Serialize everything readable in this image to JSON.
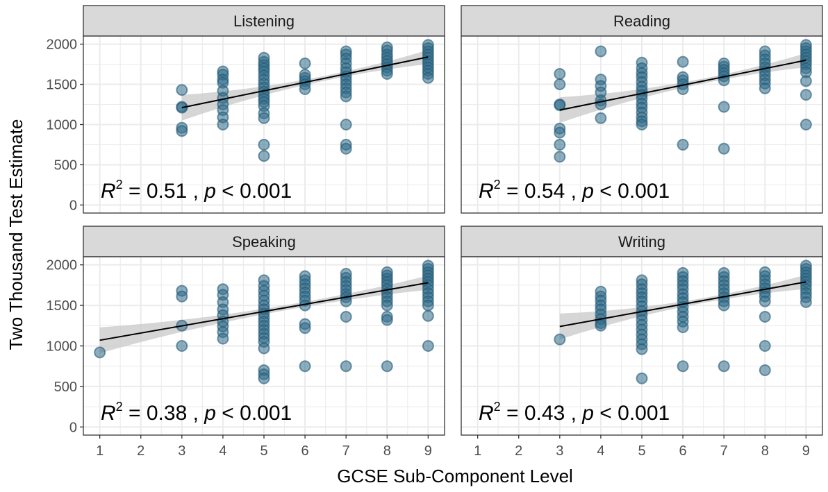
{
  "chart_data": {
    "type": "scatter",
    "xlabel": "GCSE Sub-Component Level",
    "ylabel": "Two Thousand Test Estimate",
    "xlim": [
      0.6,
      9.4
    ],
    "ylim": [
      -100,
      2100
    ],
    "x_ticks": [
      1,
      2,
      3,
      4,
      5,
      6,
      7,
      8,
      9
    ],
    "y_ticks": [
      0,
      500,
      1000,
      1500,
      2000
    ],
    "grid": true,
    "colors": {
      "point": "#2f6c8a",
      "point_edge": "#245a74",
      "fit_line": "#000000",
      "ci_band": "#c8c8c8",
      "strip_bg": "#d9d9d9",
      "panel_border": "#333333",
      "grid": "#ebebeb"
    },
    "panels": [
      {
        "title": "Listening",
        "stat": {
          "r2": "0.51",
          "p": "0.001",
          "r_label": "R",
          "sup": "2",
          "p_label": "p",
          "eq": " = ",
          "lt": " < ",
          "sep": " , "
        },
        "fit": {
          "x": [
            3,
            9
          ],
          "y": [
            1210,
            1840
          ]
        },
        "points": [
          [
            3,
            1430
          ],
          [
            3,
            1220
          ],
          [
            3,
            1210
          ],
          [
            3,
            960
          ],
          [
            3,
            920
          ],
          [
            4,
            1660
          ],
          [
            4,
            1620
          ],
          [
            4,
            1560
          ],
          [
            4,
            1520
          ],
          [
            4,
            1420
          ],
          [
            4,
            1330
          ],
          [
            4,
            1250
          ],
          [
            4,
            1180
          ],
          [
            4,
            1090
          ],
          [
            4,
            1000
          ],
          [
            5,
            1830
          ],
          [
            5,
            1780
          ],
          [
            5,
            1740
          ],
          [
            5,
            1700
          ],
          [
            5,
            1660
          ],
          [
            5,
            1610
          ],
          [
            5,
            1560
          ],
          [
            5,
            1510
          ],
          [
            5,
            1460
          ],
          [
            5,
            1410
          ],
          [
            5,
            1360
          ],
          [
            5,
            1320
          ],
          [
            5,
            1280
          ],
          [
            5,
            1230
          ],
          [
            5,
            1140
          ],
          [
            5,
            1080
          ],
          [
            5,
            750
          ],
          [
            5,
            610
          ],
          [
            6,
            1760
          ],
          [
            6,
            1620
          ],
          [
            6,
            1580
          ],
          [
            6,
            1540
          ],
          [
            6,
            1500
          ],
          [
            6,
            1440
          ],
          [
            7,
            1910
          ],
          [
            7,
            1870
          ],
          [
            7,
            1820
          ],
          [
            7,
            1760
          ],
          [
            7,
            1700
          ],
          [
            7,
            1650
          ],
          [
            7,
            1600
          ],
          [
            7,
            1550
          ],
          [
            7,
            1500
          ],
          [
            7,
            1450
          ],
          [
            7,
            1400
          ],
          [
            7,
            1350
          ],
          [
            7,
            1000
          ],
          [
            7,
            750
          ],
          [
            7,
            700
          ],
          [
            8,
            1960
          ],
          [
            8,
            1920
          ],
          [
            8,
            1870
          ],
          [
            8,
            1830
          ],
          [
            8,
            1790
          ],
          [
            8,
            1750
          ],
          [
            8,
            1710
          ],
          [
            8,
            1670
          ],
          [
            8,
            1630
          ],
          [
            9,
            1990
          ],
          [
            9,
            1950
          ],
          [
            9,
            1910
          ],
          [
            9,
            1870
          ],
          [
            9,
            1830
          ],
          [
            9,
            1790
          ],
          [
            9,
            1750
          ],
          [
            9,
            1710
          ],
          [
            9,
            1670
          ],
          [
            9,
            1630
          ],
          [
            9,
            1580
          ]
        ]
      },
      {
        "title": "Reading",
        "stat": {
          "r2": "0.54",
          "p": "0.001",
          "r_label": "R",
          "sup": "2",
          "p_label": "p",
          "eq": " = ",
          "lt": " < ",
          "sep": " , "
        },
        "fit": {
          "x": [
            3,
            9
          ],
          "y": [
            1180,
            1800
          ]
        },
        "points": [
          [
            3,
            1630
          ],
          [
            3,
            1500
          ],
          [
            3,
            1250
          ],
          [
            3,
            1240
          ],
          [
            3,
            950
          ],
          [
            3,
            900
          ],
          [
            3,
            750
          ],
          [
            3,
            600
          ],
          [
            4,
            1910
          ],
          [
            4,
            1560
          ],
          [
            4,
            1480
          ],
          [
            4,
            1400
          ],
          [
            4,
            1300
          ],
          [
            4,
            1250
          ],
          [
            4,
            1080
          ],
          [
            5,
            1770
          ],
          [
            5,
            1700
          ],
          [
            5,
            1640
          ],
          [
            5,
            1590
          ],
          [
            5,
            1530
          ],
          [
            5,
            1470
          ],
          [
            5,
            1420
          ],
          [
            5,
            1370
          ],
          [
            5,
            1320
          ],
          [
            5,
            1260
          ],
          [
            5,
            1210
          ],
          [
            5,
            1150
          ],
          [
            5,
            1090
          ],
          [
            5,
            1040
          ],
          [
            5,
            1000
          ],
          [
            6,
            1780
          ],
          [
            6,
            1590
          ],
          [
            6,
            1550
          ],
          [
            6,
            1500
          ],
          [
            6,
            1440
          ],
          [
            6,
            750
          ],
          [
            7,
            1760
          ],
          [
            7,
            1720
          ],
          [
            7,
            1680
          ],
          [
            7,
            1640
          ],
          [
            7,
            1600
          ],
          [
            7,
            1550
          ],
          [
            7,
            1220
          ],
          [
            7,
            700
          ],
          [
            8,
            1910
          ],
          [
            8,
            1860
          ],
          [
            8,
            1810
          ],
          [
            8,
            1760
          ],
          [
            8,
            1710
          ],
          [
            8,
            1660
          ],
          [
            8,
            1610
          ],
          [
            8,
            1560
          ],
          [
            8,
            1510
          ],
          [
            8,
            1450
          ],
          [
            9,
            1990
          ],
          [
            9,
            1950
          ],
          [
            9,
            1910
          ],
          [
            9,
            1870
          ],
          [
            9,
            1830
          ],
          [
            9,
            1790
          ],
          [
            9,
            1750
          ],
          [
            9,
            1700
          ],
          [
            9,
            1650
          ],
          [
            9,
            1540
          ],
          [
            9,
            1370
          ],
          [
            9,
            1000
          ]
        ]
      },
      {
        "title": "Speaking",
        "stat": {
          "r2": "0.38",
          "p": "0.001",
          "r_label": "R",
          "sup": "2",
          "p_label": "p",
          "eq": " = ",
          "lt": " < ",
          "sep": " , "
        },
        "fit": {
          "x": [
            1,
            9
          ],
          "y": [
            1070,
            1780
          ]
        },
        "points": [
          [
            1,
            920
          ],
          [
            3,
            1680
          ],
          [
            3,
            1610
          ],
          [
            3,
            1250
          ],
          [
            3,
            1000
          ],
          [
            4,
            1700
          ],
          [
            4,
            1630
          ],
          [
            4,
            1540
          ],
          [
            4,
            1450
          ],
          [
            4,
            1380
          ],
          [
            4,
            1300
          ],
          [
            4,
            1240
          ],
          [
            4,
            1170
          ],
          [
            4,
            1090
          ],
          [
            5,
            1810
          ],
          [
            5,
            1740
          ],
          [
            5,
            1680
          ],
          [
            5,
            1620
          ],
          [
            5,
            1560
          ],
          [
            5,
            1500
          ],
          [
            5,
            1450
          ],
          [
            5,
            1400
          ],
          [
            5,
            1350
          ],
          [
            5,
            1300
          ],
          [
            5,
            1250
          ],
          [
            5,
            1200
          ],
          [
            5,
            1150
          ],
          [
            5,
            1100
          ],
          [
            5,
            1050
          ],
          [
            5,
            970
          ],
          [
            5,
            700
          ],
          [
            5,
            650
          ],
          [
            5,
            600
          ],
          [
            6,
            1860
          ],
          [
            6,
            1810
          ],
          [
            6,
            1760
          ],
          [
            6,
            1710
          ],
          [
            6,
            1660
          ],
          [
            6,
            1610
          ],
          [
            6,
            1560
          ],
          [
            6,
            1500
          ],
          [
            6,
            1270
          ],
          [
            6,
            1220
          ],
          [
            6,
            750
          ],
          [
            7,
            1890
          ],
          [
            7,
            1840
          ],
          [
            7,
            1790
          ],
          [
            7,
            1740
          ],
          [
            7,
            1690
          ],
          [
            7,
            1640
          ],
          [
            7,
            1600
          ],
          [
            7,
            1550
          ],
          [
            7,
            1360
          ],
          [
            7,
            750
          ],
          [
            8,
            1910
          ],
          [
            8,
            1870
          ],
          [
            8,
            1830
          ],
          [
            8,
            1790
          ],
          [
            8,
            1750
          ],
          [
            8,
            1700
          ],
          [
            8,
            1650
          ],
          [
            8,
            1600
          ],
          [
            8,
            1550
          ],
          [
            8,
            1500
          ],
          [
            8,
            1360
          ],
          [
            8,
            1320
          ],
          [
            8,
            750
          ],
          [
            9,
            1990
          ],
          [
            9,
            1950
          ],
          [
            9,
            1910
          ],
          [
            9,
            1870
          ],
          [
            9,
            1830
          ],
          [
            9,
            1790
          ],
          [
            9,
            1750
          ],
          [
            9,
            1700
          ],
          [
            9,
            1650
          ],
          [
            9,
            1600
          ],
          [
            9,
            1550
          ],
          [
            9,
            1500
          ],
          [
            9,
            1370
          ],
          [
            9,
            1000
          ]
        ]
      },
      {
        "title": "Writing",
        "stat": {
          "r2": "0.43",
          "p": "0.001",
          "r_label": "R",
          "sup": "2",
          "p_label": "p",
          "eq": " = ",
          "lt": " < ",
          "sep": " , "
        },
        "fit": {
          "x": [
            3,
            9
          ],
          "y": [
            1240,
            1790
          ]
        },
        "points": [
          [
            3,
            1080
          ],
          [
            4,
            1670
          ],
          [
            4,
            1610
          ],
          [
            4,
            1560
          ],
          [
            4,
            1500
          ],
          [
            4,
            1450
          ],
          [
            4,
            1390
          ],
          [
            4,
            1330
          ],
          [
            4,
            1280
          ],
          [
            4,
            1250
          ],
          [
            5,
            1810
          ],
          [
            5,
            1760
          ],
          [
            5,
            1700
          ],
          [
            5,
            1650
          ],
          [
            5,
            1600
          ],
          [
            5,
            1550
          ],
          [
            5,
            1490
          ],
          [
            5,
            1430
          ],
          [
            5,
            1380
          ],
          [
            5,
            1320
          ],
          [
            5,
            1260
          ],
          [
            5,
            1200
          ],
          [
            5,
            1140
          ],
          [
            5,
            1080
          ],
          [
            5,
            1020
          ],
          [
            5,
            960
          ],
          [
            5,
            600
          ],
          [
            6,
            1900
          ],
          [
            6,
            1850
          ],
          [
            6,
            1800
          ],
          [
            6,
            1750
          ],
          [
            6,
            1700
          ],
          [
            6,
            1640
          ],
          [
            6,
            1590
          ],
          [
            6,
            1540
          ],
          [
            6,
            1480
          ],
          [
            6,
            1420
          ],
          [
            6,
            1360
          ],
          [
            6,
            1300
          ],
          [
            6,
            1230
          ],
          [
            6,
            750
          ],
          [
            7,
            1900
          ],
          [
            7,
            1850
          ],
          [
            7,
            1800
          ],
          [
            7,
            1750
          ],
          [
            7,
            1700
          ],
          [
            7,
            1650
          ],
          [
            7,
            1600
          ],
          [
            7,
            1550
          ],
          [
            7,
            1500
          ],
          [
            7,
            750
          ],
          [
            8,
            1910
          ],
          [
            8,
            1860
          ],
          [
            8,
            1810
          ],
          [
            8,
            1760
          ],
          [
            8,
            1710
          ],
          [
            8,
            1660
          ],
          [
            8,
            1610
          ],
          [
            8,
            1550
          ],
          [
            8,
            1360
          ],
          [
            8,
            1000
          ],
          [
            8,
            700
          ],
          [
            9,
            1990
          ],
          [
            9,
            1950
          ],
          [
            9,
            1910
          ],
          [
            9,
            1870
          ],
          [
            9,
            1830
          ],
          [
            9,
            1790
          ],
          [
            9,
            1750
          ],
          [
            9,
            1700
          ],
          [
            9,
            1650
          ],
          [
            9,
            1600
          ],
          [
            9,
            1540
          ]
        ]
      }
    ]
  }
}
